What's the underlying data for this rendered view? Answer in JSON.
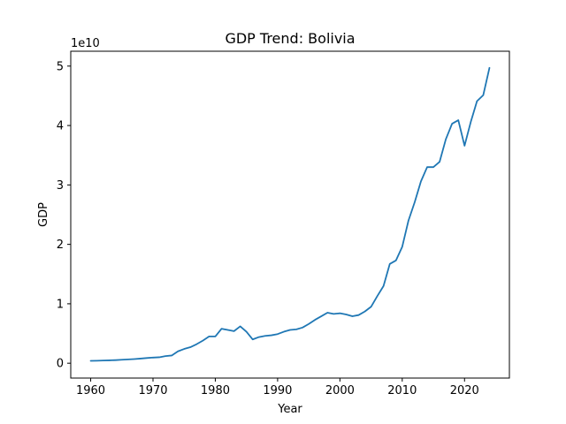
{
  "chart_data": {
    "type": "line",
    "title": "GDP Trend: Bolivia",
    "xlabel": "Year",
    "ylabel": "GDP",
    "y_scale_note": "1e10",
    "xlim": [
      1956.8,
      2027.2
    ],
    "ylim": [
      -0.25,
      5.25
    ],
    "x_ticks": [
      1960,
      1970,
      1980,
      1990,
      2000,
      2010,
      2020
    ],
    "x_tick_labels": [
      "1960",
      "1970",
      "1980",
      "1990",
      "2000",
      "2010",
      "2020"
    ],
    "y_ticks": [
      0,
      1,
      2,
      3,
      4,
      5
    ],
    "y_tick_labels": [
      "0",
      "1",
      "2",
      "3",
      "4",
      "5"
    ],
    "grid": false,
    "line_color": "#1f77b4",
    "series": [
      {
        "x": [
          1960,
          1961,
          1962,
          1963,
          1964,
          1965,
          1966,
          1967,
          1968,
          1969,
          1970,
          1971,
          1972,
          1973,
          1974,
          1975,
          1976,
          1977,
          1978,
          1979,
          1980,
          1981,
          1982,
          1983,
          1984,
          1985,
          1986,
          1987,
          1988,
          1989,
          1990,
          1991,
          1992,
          1993,
          1994,
          1995,
          1996,
          1997,
          1998,
          1999,
          2000,
          2001,
          2002,
          2003,
          2004,
          2005,
          2006,
          2007,
          2008,
          2009,
          2010,
          2011,
          2012,
          2013,
          2014,
          2015,
          2016,
          2017,
          2018,
          2019,
          2020,
          2021,
          2022,
          2023,
          2024
        ],
        "values": [
          0.04,
          0.042,
          0.045,
          0.048,
          0.052,
          0.058,
          0.064,
          0.07,
          0.078,
          0.087,
          0.095,
          0.1,
          0.12,
          0.13,
          0.2,
          0.24,
          0.27,
          0.32,
          0.38,
          0.45,
          0.45,
          0.58,
          0.56,
          0.54,
          0.62,
          0.53,
          0.4,
          0.44,
          0.46,
          0.47,
          0.49,
          0.53,
          0.56,
          0.57,
          0.6,
          0.66,
          0.73,
          0.79,
          0.85,
          0.83,
          0.84,
          0.82,
          0.79,
          0.81,
          0.87,
          0.95,
          1.13,
          1.3,
          1.67,
          1.73,
          1.96,
          2.4,
          2.71,
          3.06,
          3.3,
          3.3,
          3.39,
          3.77,
          4.03,
          4.09,
          3.66,
          4.06,
          4.41,
          4.51,
          4.97
        ]
      }
    ]
  }
}
